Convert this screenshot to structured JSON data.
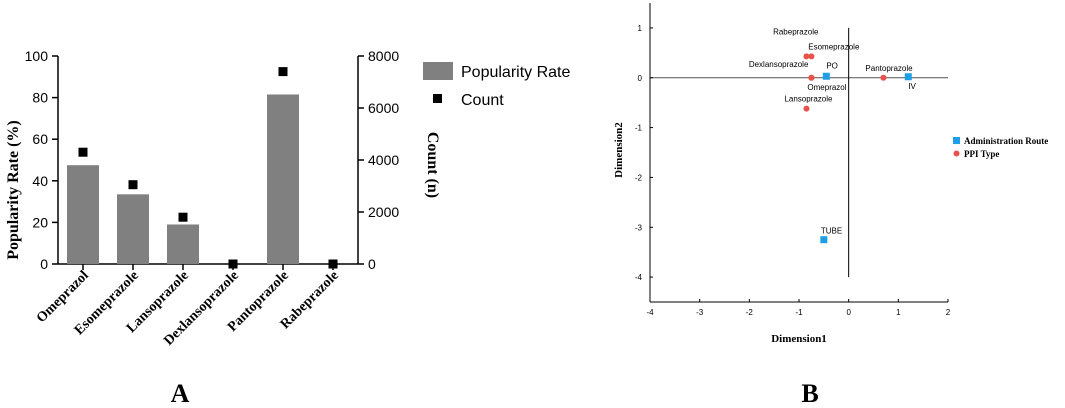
{
  "chart_data": [
    {
      "type": "bar",
      "panel_label": "A",
      "categories": [
        "Omeprazol",
        "Esomeprazole",
        "Lansoprazole",
        "Dexlansoprazole",
        "Pantoprazole",
        "Rabeprazole"
      ],
      "series": [
        {
          "name": "Popularity Rate",
          "type": "bar",
          "axis": "left",
          "values": [
            47.5,
            33.5,
            19,
            0,
            81.5,
            0
          ],
          "color": "#808080"
        },
        {
          "name": "Count",
          "type": "scatter",
          "marker": "square",
          "axis": "right",
          "values": [
            4300,
            3050,
            1800,
            0,
            7400,
            0
          ],
          "color": "#000000"
        }
      ],
      "ylabel": "Popularity Rate (%)",
      "ylabel_right": "Count (n)",
      "ylim": [
        0,
        100
      ],
      "ylim_right": [
        0,
        8000
      ],
      "yticks": [
        0,
        20,
        40,
        60,
        80,
        100
      ],
      "yticks_right": [
        0,
        2000,
        4000,
        6000,
        8000
      ],
      "grid": false,
      "legend": "right"
    },
    {
      "type": "scatter",
      "panel_label": "B",
      "xlabel": "Dimension1",
      "ylabel": "Dimension2",
      "xlim": [
        -4,
        2
      ],
      "ylim": [
        -4.5,
        1.5
      ],
      "xticks": [
        -4,
        -3,
        -2,
        -1,
        0,
        1,
        2
      ],
      "yticks": [
        -4,
        -3,
        -2,
        -1,
        0,
        1
      ],
      "grid": false,
      "legend": "right",
      "series": [
        {
          "name": "Administration Route",
          "marker": "square",
          "color": "#1f9ee8",
          "points": [
            {
              "label": "PO",
              "x": -0.45,
              "y": 0.03
            },
            {
              "label": "IV",
              "x": 1.2,
              "y": 0.02
            },
            {
              "label": "TUBE",
              "x": -0.5,
              "y": -3.25
            }
          ]
        },
        {
          "name": "PPI Type",
          "marker": "circle",
          "color": "#e8524a",
          "points": [
            {
              "label": "Rabeprazole",
              "x": -0.85,
              "y": 0.43
            },
            {
              "label": "Esomeprazole",
              "x": -0.75,
              "y": 0.43
            },
            {
              "label": "Dexlansoprazole",
              "x": -0.75,
              "y": 0.0
            },
            {
              "label": "Omeprazol",
              "x": -0.75,
              "y": 0.0
            },
            {
              "label": "Pantoprazole",
              "x": 0.7,
              "y": 0.0
            },
            {
              "label": "Lansoprazole",
              "x": -0.85,
              "y": -0.62
            }
          ]
        }
      ]
    }
  ]
}
